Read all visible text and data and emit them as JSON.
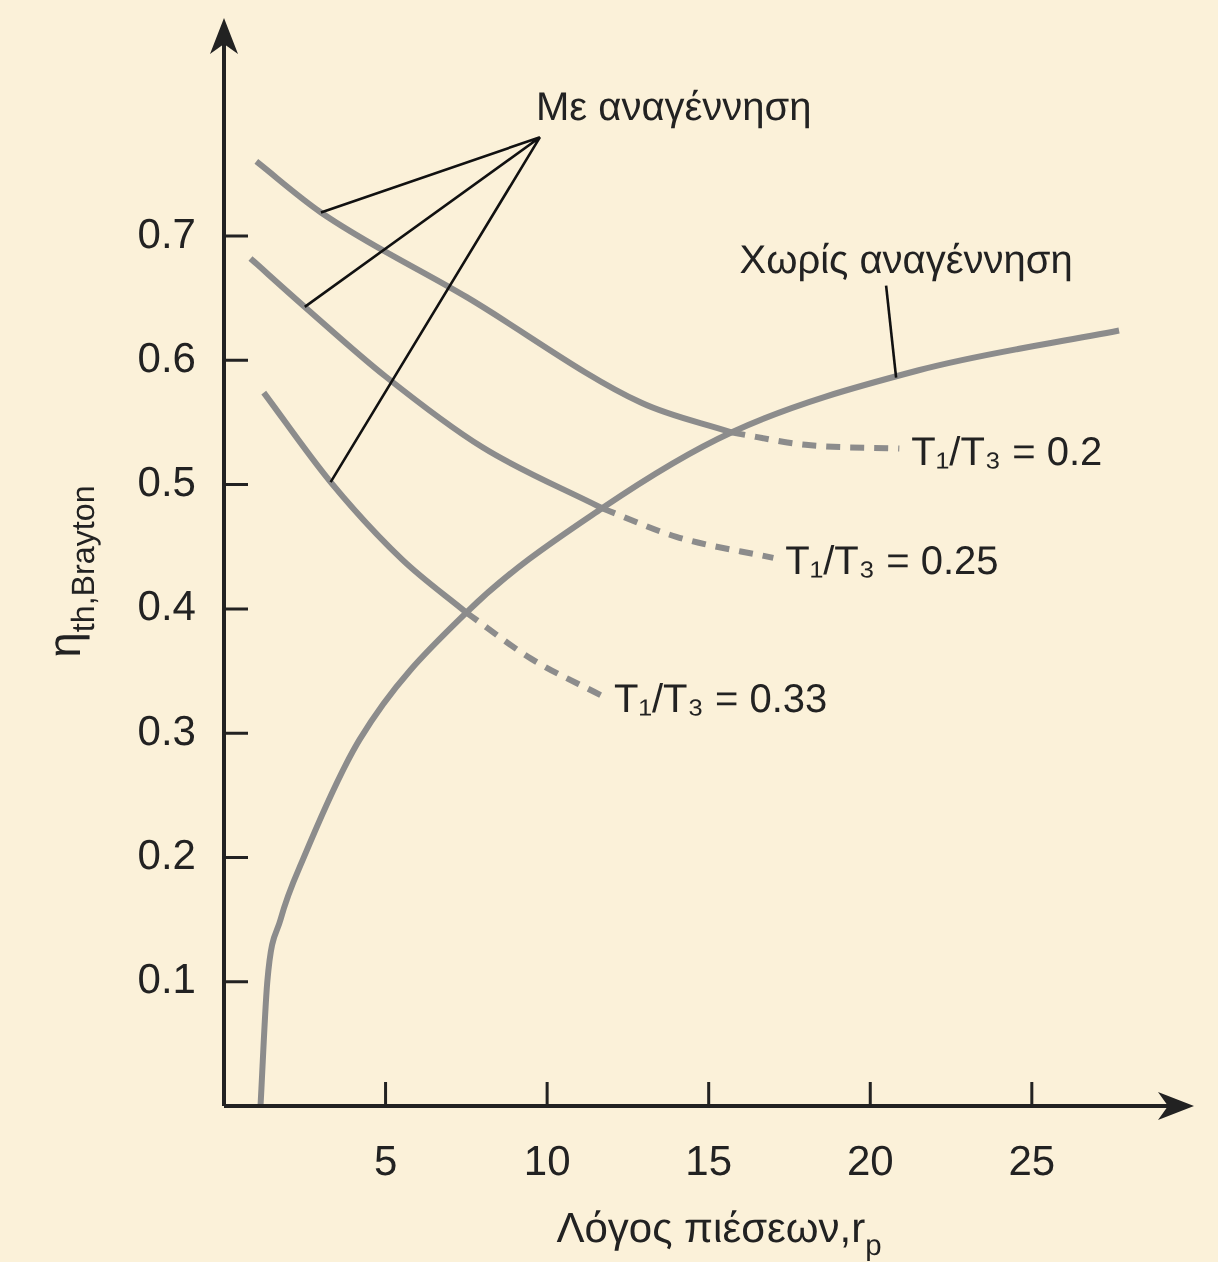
{
  "chart_data": {
    "type": "line",
    "xlabel": "Λόγος πιέσεων,r$_{p}$",
    "ylabel": "η$_{th,Brayton}$",
    "xlim": [
      0,
      29.4
    ],
    "ylim": [
      0,
      0.86
    ],
    "xticks": [
      5,
      10,
      15,
      20,
      25
    ],
    "yticks": [
      0.1,
      0.2,
      0.3,
      0.4,
      0.5,
      0.6,
      0.7
    ],
    "grid": false,
    "legend": false,
    "marker": "none",
    "series": [
      {
        "color": "#8c8c8c",
        "line_style": "solid",
        "x": [
          1,
          3,
          7.5,
          12.9,
          15.7
        ],
        "values": [
          0.76,
          0.719,
          0.651,
          0.566,
          0.542
        ]
      },
      {
        "name": "T₁/T₃ = 0.2",
        "color": "#8c8c8c",
        "line_style": "dashed",
        "x": [
          15.7,
          18,
          20.9
        ],
        "values": [
          0.542,
          0.532,
          0.529
        ]
      },
      {
        "color": "#8c8c8c",
        "line_style": "solid",
        "x": [
          0.82,
          2.5,
          5,
          8,
          11.7
        ],
        "values": [
          0.682,
          0.643,
          0.587,
          0.53,
          0.481
        ]
      },
      {
        "name": "T₁/T₃ = 0.25",
        "color": "#8c8c8c",
        "line_style": "dashed",
        "x": [
          11.7,
          14,
          17
        ],
        "values": [
          0.481,
          0.458,
          0.441
        ]
      },
      {
        "color": "#8c8c8c",
        "line_style": "solid",
        "x": [
          1.23,
          3.3,
          5.5,
          7.5
        ],
        "values": [
          0.574,
          0.502,
          0.44,
          0.397
        ]
      },
      {
        "name": "T₁/T₃ = 0.33",
        "color": "#8c8c8c",
        "line_style": "dashed",
        "x": [
          7.5,
          9.5,
          11.7
        ],
        "values": [
          0.397,
          0.36,
          0.33
        ]
      },
      {
        "color": "#8c8c8c",
        "line_style": "solid",
        "x": [
          1.13,
          1.34,
          1.75,
          2.47,
          4.2,
          7.5,
          11.7,
          15.7,
          21.5,
          27.7
        ],
        "values": [
          0,
          0.1,
          0.15,
          0.2,
          0.295,
          0.397,
          0.481,
          0.542,
          0.592,
          0.624
        ]
      }
    ],
    "annotations": [
      {
        "text": "Με αναγέννηση",
        "x": 3,
        "y": 0.719
      },
      {
        "text": "Χωρίς αναγέννηση",
        "x": 20.8,
        "y": 0.586
      }
    ]
  }
}
